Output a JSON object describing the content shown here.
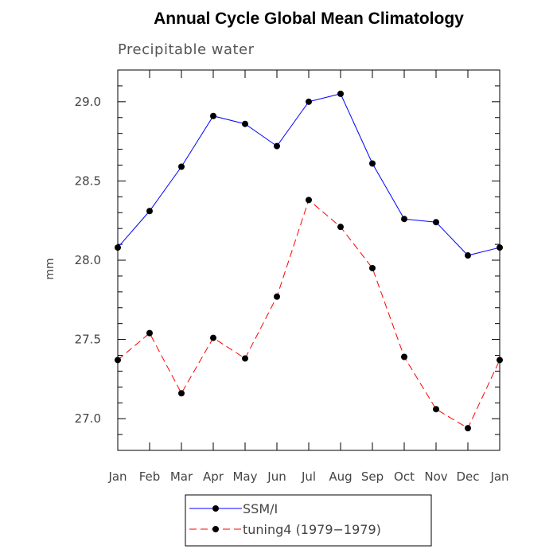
{
  "chart_data": {
    "type": "line",
    "title": "Annual Cycle Global Mean Climatology",
    "subtitle": "Precipitable water",
    "xlabel": "",
    "ylabel": "mm",
    "categories": [
      "Jan",
      "Feb",
      "Mar",
      "Apr",
      "May",
      "Jun",
      "Jul",
      "Aug",
      "Sep",
      "Oct",
      "Nov",
      "Dec",
      "Jan"
    ],
    "ylim": [
      26.8,
      29.2
    ],
    "yticks": [
      27.0,
      27.5,
      28.0,
      28.5,
      29.0
    ],
    "ytick_labels": [
      "27.0",
      "27.5",
      "28.0",
      "28.5",
      "29.0"
    ],
    "series": [
      {
        "name": "SSM/I",
        "color": "#0000ff",
        "dashed": false,
        "values": [
          28.08,
          28.31,
          28.59,
          28.91,
          28.86,
          28.72,
          29.0,
          29.05,
          28.61,
          28.26,
          28.24,
          28.03,
          28.08
        ]
      },
      {
        "name": "tuning4 (1979−1979)",
        "color": "#ff0000",
        "dashed": true,
        "values": [
          27.37,
          27.54,
          27.16,
          27.51,
          27.38,
          27.77,
          28.38,
          28.21,
          27.95,
          27.39,
          27.06,
          26.94,
          27.37
        ]
      }
    ],
    "legend_position": "bottom-center"
  }
}
